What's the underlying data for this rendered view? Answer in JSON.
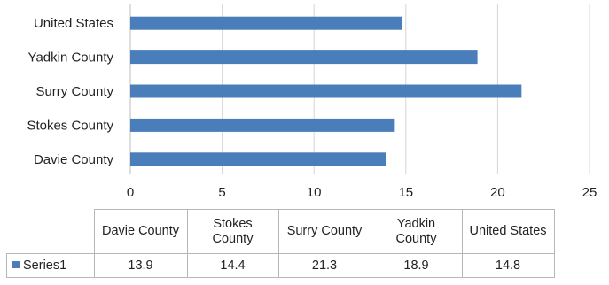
{
  "chart_data": {
    "type": "bar",
    "orientation": "horizontal",
    "categories": [
      "Davie County",
      "Stokes County",
      "Surry County",
      "Yadkin County",
      "United States"
    ],
    "series": [
      {
        "name": "Series1",
        "values": [
          13.9,
          14.4,
          21.3,
          18.9,
          14.8
        ]
      }
    ],
    "xlim": [
      0,
      25
    ],
    "xticks": [
      "0",
      "5",
      "10",
      "15",
      "20",
      "25"
    ],
    "grid": true,
    "legend": "data-table",
    "bar_color": "#4a7ebb"
  },
  "table": {
    "headers": [
      "Davie County",
      "Stokes\nCounty",
      "Surry County",
      "Yadkin\nCounty",
      "United States"
    ],
    "row_label": "Series1",
    "values": [
      "13.9",
      "14.4",
      "21.3",
      "18.9",
      "14.8"
    ]
  }
}
